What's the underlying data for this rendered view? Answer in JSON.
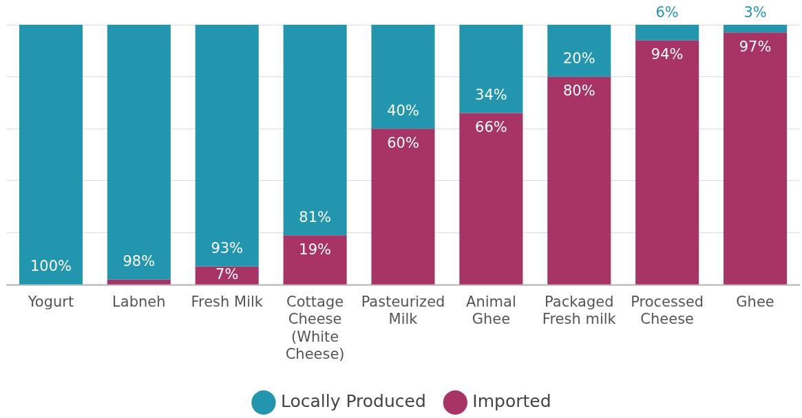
{
  "chart_data": {
    "type": "bar",
    "stacked": true,
    "categories": [
      "Yogurt",
      "Labneh",
      "Fresh Milk",
      "Cottage Cheese (White Cheese)",
      "Pasteurized Milk",
      "Animal Ghee",
      "Packaged Fresh milk",
      "Processed Cheese",
      "Ghee"
    ],
    "series": [
      {
        "name": "Imported",
        "color": "#a83465",
        "values": [
          0,
          2,
          7,
          19,
          60,
          66,
          80,
          94,
          97
        ],
        "value_labels": [
          null,
          null,
          "7%",
          "19%",
          "60%",
          "66%",
          "80%",
          "94%",
          "97%"
        ]
      },
      {
        "name": "Locally Produced",
        "color": "#2196ae",
        "values": [
          100,
          98,
          93,
          81,
          40,
          34,
          20,
          6,
          3
        ],
        "value_labels": [
          "100%",
          "98%",
          "93%",
          "81%",
          "40%",
          "34%",
          "20%",
          "6%",
          "3%"
        ]
      }
    ],
    "ylim": [
      0,
      100
    ],
    "yticks": [
      {
        "value": 0,
        "label": null
      },
      {
        "value": 20,
        "label": null
      },
      {
        "value": 40,
        "label": null
      },
      {
        "value": 60,
        "label": null
      },
      {
        "value": 80,
        "label": null
      },
      {
        "value": 100,
        "label": null
      }
    ],
    "tick_labels": "x",
    "grid": "y",
    "legend": "bottom"
  }
}
